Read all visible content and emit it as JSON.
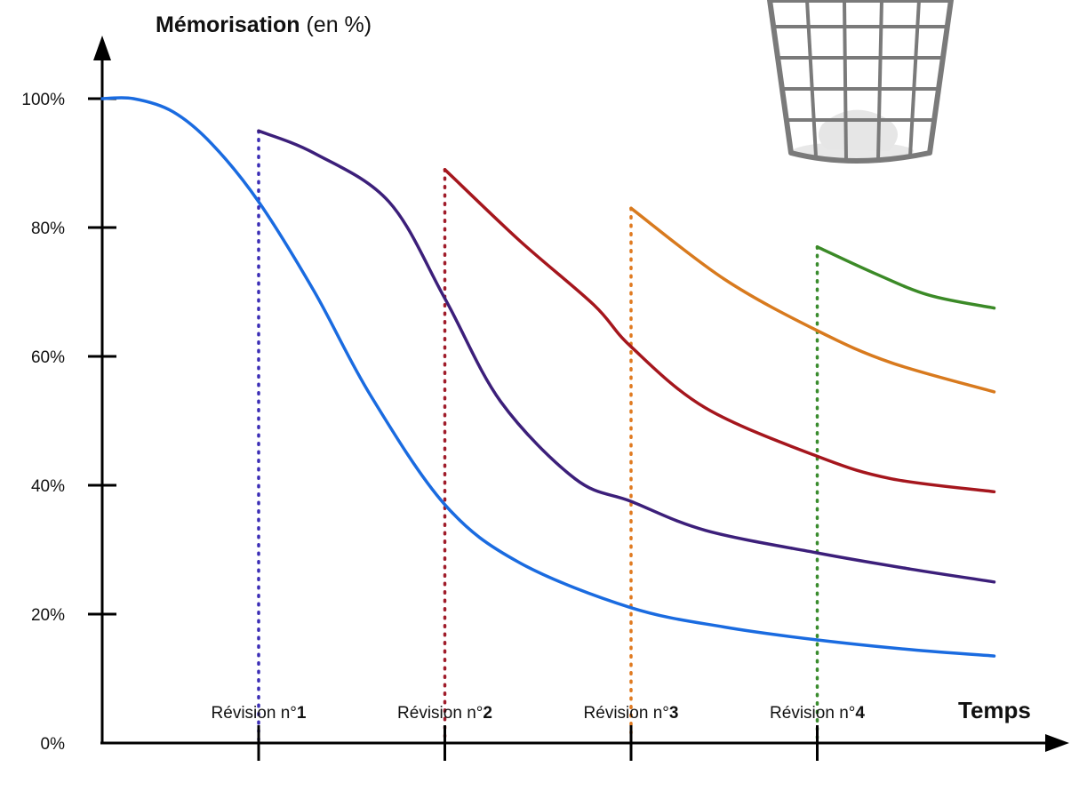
{
  "chart_data": {
    "type": "line",
    "title_bold": "Mémorisation",
    "title_rest": " (en %)",
    "xlabel": "Temps",
    "ylim": [
      0,
      100
    ],
    "y_ticks": [
      {
        "value": 0,
        "label": "0%"
      },
      {
        "value": 20,
        "label": "20%"
      },
      {
        "value": 40,
        "label": "40%"
      },
      {
        "value": 60,
        "label": "60%"
      },
      {
        "value": 80,
        "label": "80%"
      },
      {
        "value": 100,
        "label": "100%"
      }
    ],
    "revisions": [
      {
        "prefix": "Révision n°",
        "num": "1",
        "x": 1,
        "color": "#3b2db5"
      },
      {
        "prefix": "Révision n°",
        "num": "2",
        "x": 2,
        "color": "#a01c2a"
      },
      {
        "prefix": "Révision n°",
        "num": "3",
        "x": 3,
        "color": "#e07a20"
      },
      {
        "prefix": "Révision n°",
        "num": "4",
        "x": 4,
        "color": "#3a8c2e"
      }
    ],
    "xlim": [
      0,
      5
    ],
    "series": [
      {
        "color": "#1a6be0",
        "points": [
          [
            0,
            100
          ],
          [
            0.2,
            100
          ],
          [
            0.45,
            98
          ],
          [
            0.7,
            93
          ],
          [
            1,
            84
          ],
          [
            1.3,
            70
          ],
          [
            1.6,
            54
          ],
          [
            2,
            37
          ],
          [
            2.4,
            28
          ],
          [
            3,
            21
          ],
          [
            3.5,
            18
          ],
          [
            4,
            16
          ],
          [
            4.5,
            14.5
          ],
          [
            4.95,
            13.5
          ]
        ]
      },
      {
        "color": "#3c1f7a",
        "points": [
          [
            1,
            95
          ],
          [
            1.3,
            91.5
          ],
          [
            1.7,
            84
          ],
          [
            2,
            69
          ],
          [
            2.3,
            53
          ],
          [
            2.7,
            41
          ],
          [
            3,
            37.5
          ],
          [
            3.4,
            33
          ],
          [
            4,
            29.5
          ],
          [
            4.5,
            27
          ],
          [
            4.95,
            25
          ]
        ]
      },
      {
        "color": "#a5161d",
        "points": [
          [
            2,
            89
          ],
          [
            2.4,
            78
          ],
          [
            2.8,
            68
          ],
          [
            3,
            61.5
          ],
          [
            3.4,
            52
          ],
          [
            4,
            44.5
          ],
          [
            4.4,
            41
          ],
          [
            4.95,
            39
          ]
        ]
      },
      {
        "color": "#d87a1e",
        "points": [
          [
            3,
            83
          ],
          [
            3.5,
            72
          ],
          [
            4,
            64
          ],
          [
            4.4,
            59
          ],
          [
            4.95,
            54.5
          ]
        ]
      },
      {
        "color": "#3b8a27",
        "points": [
          [
            4,
            77
          ],
          [
            4.3,
            73
          ],
          [
            4.6,
            69.5
          ],
          [
            4.95,
            67.5
          ]
        ]
      }
    ]
  }
}
